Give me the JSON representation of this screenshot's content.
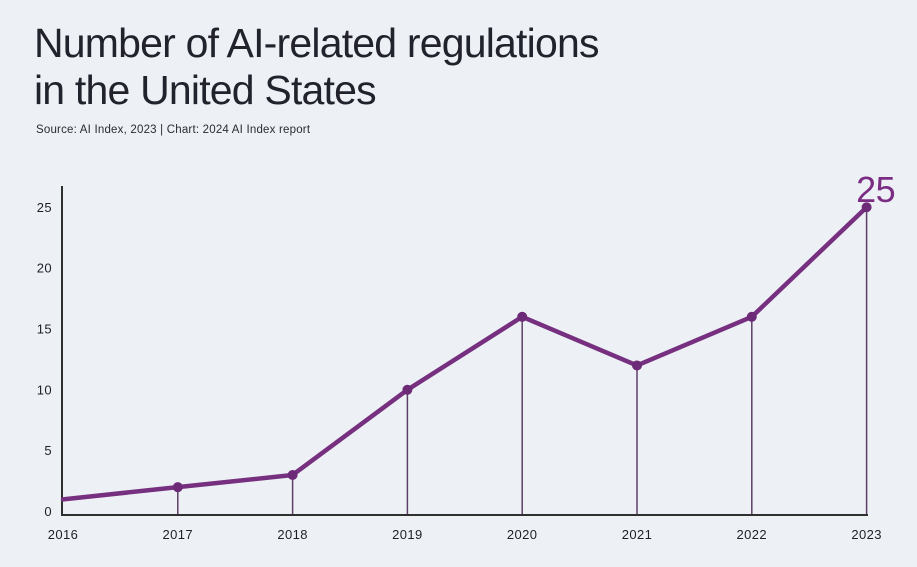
{
  "page": {
    "title_line1": "Number of AI-related regulations",
    "title_line2": "in the United States",
    "source": "Source: AI Index, 2023 | Chart: 2024 AI Index report"
  },
  "colors": {
    "background": "#edf1f6",
    "line": "#76307f",
    "point": "#6d2a76",
    "stem": "#5e3f68",
    "axis": "#2f2f2f",
    "tick_label": "#1f1f28",
    "annotation": "#7b2d84",
    "title": "#22222c"
  },
  "chart_data": {
    "type": "line",
    "x": [
      "2016",
      "2017",
      "2018",
      "2019",
      "2020",
      "2021",
      "2022",
      "2023"
    ],
    "series": [
      {
        "name": "AI-related regulations",
        "values": [
          1,
          2,
          3,
          10,
          16,
          12,
          16,
          25
        ]
      }
    ],
    "title": "Number of AI-related regulations in the United States",
    "xlabel": "",
    "ylabel": "",
    "ylim": [
      0,
      27
    ],
    "yticks": [
      0,
      5,
      10,
      15,
      20,
      25
    ],
    "grid": false,
    "legend": "none",
    "markers": true,
    "stems": true,
    "annotation": {
      "x": "2023",
      "value": 25,
      "label": "25"
    }
  }
}
